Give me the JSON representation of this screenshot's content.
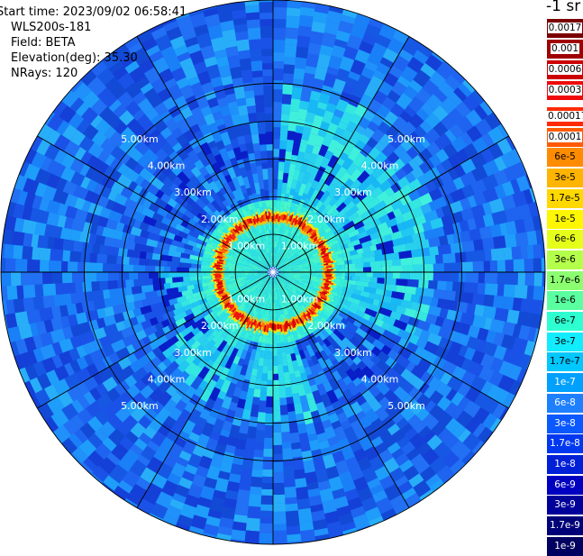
{
  "header": {
    "start_time": "Start time: 2023/09/02 06:58:41",
    "device": "WLS200s-181",
    "field": "Field: BETA",
    "elevation": "Elevation(deg): 35.30",
    "nrays": "NRays: 120"
  },
  "colorbar": {
    "units": "-1 sr",
    "labels": [
      "0.0017",
      "0.001",
      "0.0006",
      "0.0003",
      "0.00017",
      "0.0001",
      "6e-5",
      "3e-5",
      "1.7e-5",
      "1e-5",
      "6e-6",
      "3e-6",
      "1.7e-6",
      "1e-6",
      "6e-7",
      "3e-7",
      "1.7e-7",
      "1e-7",
      "6e-8",
      "3e-8",
      "1.7e-8",
      "1e-8",
      "6e-9",
      "3e-9",
      "1.7e-9",
      "1e-9"
    ],
    "colors": [
      "#7a0000",
      "#a00000",
      "#cc0000",
      "#f00a0a",
      "#ff2a00",
      "#ff5a00",
      "#ff8c00",
      "#ffb400",
      "#ffd800",
      "#fff700",
      "#e6ff1a",
      "#b4ff4a",
      "#8cff70",
      "#5affa0",
      "#2effd0",
      "#12ecff",
      "#00c8ff",
      "#00a0ff",
      "#1e80ff",
      "#0a58ff",
      "#0038f0",
      "#0020d8",
      "#0000c0",
      "#00009a",
      "#000078",
      "#000060"
    ]
  },
  "range_labels": [
    "1.00km",
    "2.00km",
    "3.00km",
    "4.00km",
    "5.00km"
  ]
}
